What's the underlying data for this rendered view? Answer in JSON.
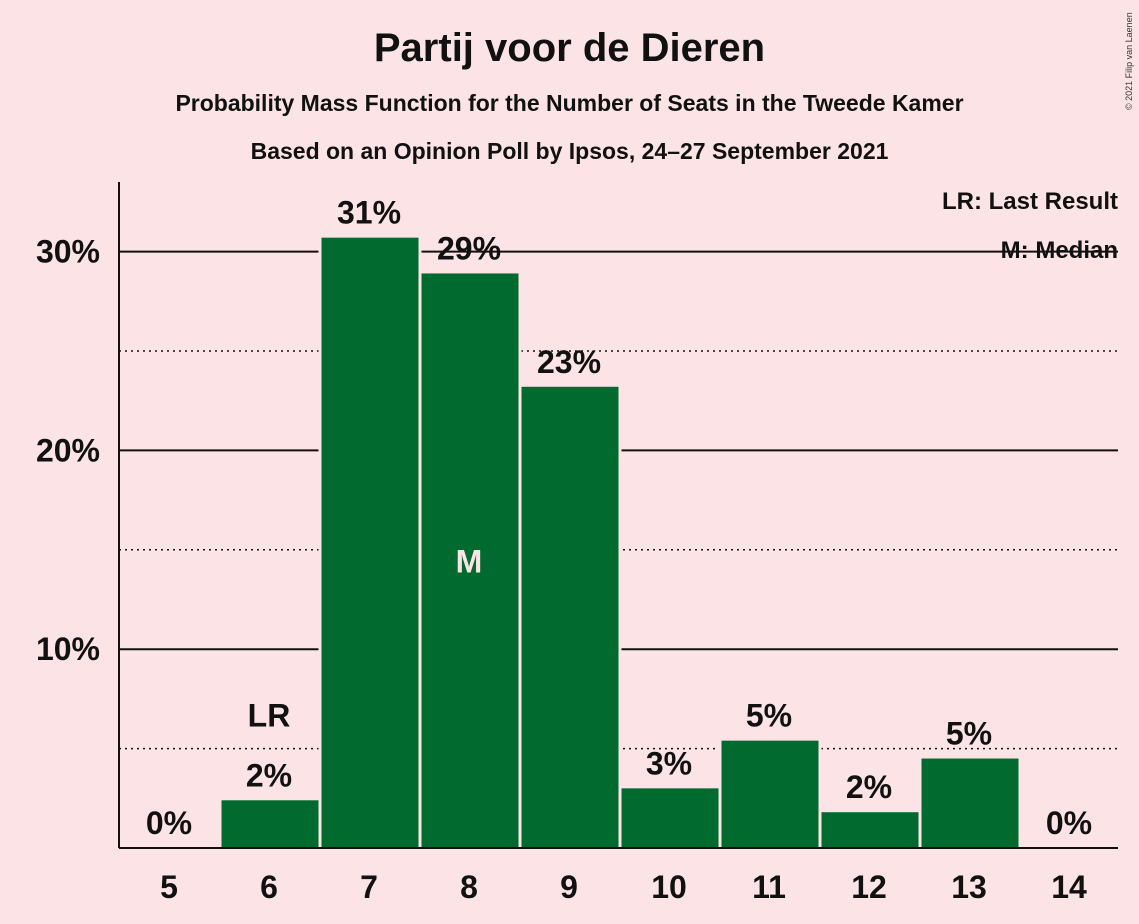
{
  "header": {
    "title": "Partij voor de Dieren",
    "subtitle": "Probability Mass Function for the Number of Seats in the Tweede Kamer",
    "subtitle2": "Based on an Opinion Poll by Ipsos, 24–27 September 2021",
    "copyright": "© 2021 Filip van Laenen"
  },
  "colors": {
    "background": "#fce4e6",
    "bar": "#006a2f",
    "text": "#111111"
  },
  "chart_data": {
    "type": "bar",
    "categories": [
      "5",
      "6",
      "7",
      "8",
      "9",
      "10",
      "11",
      "12",
      "13",
      "14"
    ],
    "values": [
      0,
      2.4,
      30.7,
      28.9,
      23.2,
      3.0,
      5.4,
      1.8,
      4.5,
      0
    ],
    "value_labels": [
      "0%",
      "2%",
      "31%",
      "29%",
      "23%",
      "3%",
      "5%",
      "2%",
      "5%",
      "0%"
    ],
    "ylim": [
      0,
      33.5
    ],
    "yticks": [
      10,
      20,
      30
    ],
    "ytick_labels": [
      "10%",
      "20%",
      "30%"
    ],
    "minor_gridlines": [
      5,
      15,
      25
    ],
    "last_result_category": "6",
    "last_result_marker": "LR",
    "median_category": "8",
    "median_marker": "M",
    "legend": {
      "position": "top-right",
      "entries": [
        "LR: Last Result",
        "M: Median"
      ]
    }
  }
}
